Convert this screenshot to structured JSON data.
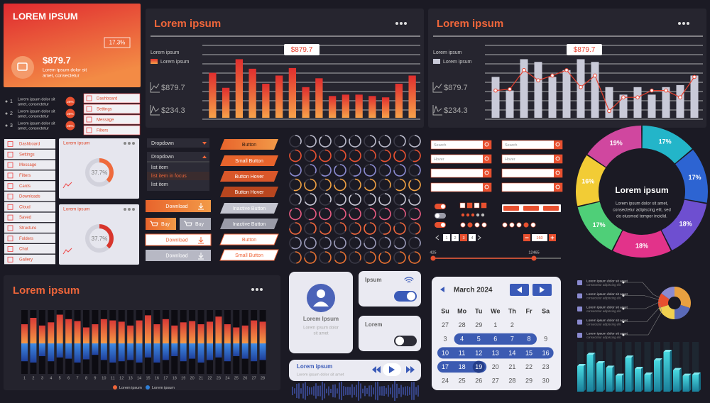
{
  "card": {
    "title": "LOREM IPSUM",
    "badge": "17.3%",
    "amount": "$879.7",
    "text": [
      "Lorem ipsum dolor sit",
      "amet, consectetur"
    ]
  },
  "bar_panel": {
    "title": "Lorem ipsum",
    "legend": [
      "Lorem ipsum",
      "Lorem ipsum"
    ],
    "stats": [
      "$879.7",
      "$234.3"
    ],
    "tooltip": "$879.7",
    "values": [
      66,
      44,
      86,
      72,
      50,
      62,
      73,
      45,
      58,
      32,
      34,
      34,
      32,
      30,
      50,
      62
    ],
    "ylim": [
      0,
      100
    ],
    "color": "#f0663a"
  },
  "combo_panel": {
    "title": "Lorem ipsum",
    "legend": [
      "Lorem ipsum",
      "Lorem ipsum"
    ],
    "stats": [
      "$879.7",
      "$234.3"
    ],
    "tooltip": "$879.7",
    "bars": [
      60,
      40,
      86,
      82,
      60,
      70,
      86,
      82,
      45,
      34,
      45,
      34,
      45,
      48,
      62
    ],
    "line": [
      40,
      42,
      70,
      55,
      62,
      70,
      45,
      62,
      10,
      30,
      30,
      40,
      40,
      30,
      60
    ],
    "ylim": [
      0,
      100
    ],
    "bar_color": "#c9cad8",
    "line_color": "#e8402f"
  },
  "steps": [
    {
      "number": "1",
      "text": [
        "Lorem ipsum dolor sit",
        "amet, consectetur"
      ],
      "badge": "28%"
    },
    {
      "number": "2",
      "text": [
        "Lorem ipsum dolor sit",
        "amet, consectetur"
      ],
      "badge": "28%"
    },
    {
      "number": "3",
      "text": [
        "Lorem ipsum dolor sit",
        "amet, consectetur"
      ],
      "badge": "28%"
    }
  ],
  "menu": [
    "Dashboard",
    "Settings",
    "Message",
    "Filters"
  ],
  "sidebar": [
    "Dashboard",
    "Settings",
    "Message",
    "Filters",
    "Cards",
    "Downloads",
    "Cloud",
    "Saved",
    "Structure",
    "Folders",
    "Chat",
    "Gallery"
  ],
  "gauges": [
    {
      "title": "Lorem ipsum",
      "value": 37.7,
      "value_label": "37.7%",
      "color": "#ef6a3c"
    },
    {
      "title": "Lorem ipsum",
      "value": 37.7,
      "value_label": "37.7%",
      "color": "#d8352c"
    }
  ],
  "dropdown": {
    "closed": "Dropdown",
    "open": "Dropdown",
    "items": [
      "list item",
      "list item in focus",
      "list item"
    ]
  },
  "actions": [
    "Download",
    "Buy",
    "Buy",
    "Download",
    "Download"
  ],
  "buttons": [
    "Button",
    "Small Button",
    "Button Hover",
    "Button Hover",
    "Inactive Button",
    "Inactive Button",
    "Button",
    "Small Button"
  ],
  "search": [
    "Search",
    "Search",
    "Hover",
    "Hover"
  ],
  "pages": [
    "1",
    "2",
    "3",
    "4"
  ],
  "stepper": "160",
  "slider": {
    "min": "425",
    "max": "12465"
  },
  "ring": {
    "title": "Lorem ipsum",
    "text": [
      "Lorem ipsum dolor sit amet,",
      "consectetur adipiscing elit, sed",
      "do eiusmod tempor incidid."
    ],
    "values": [
      17,
      17,
      18,
      18,
      17,
      16,
      19
    ],
    "value_labels": [
      "17%",
      "17%",
      "18%",
      "18%",
      "17%",
      "16%",
      "19%"
    ],
    "colors": [
      "#23b5c9",
      "#2d64d2",
      "#6e4fd0",
      "#e2338a",
      "#4fcf78",
      "#f2cc35",
      "#d0479f"
    ]
  },
  "profile": {
    "name": "Lorem Ipsum",
    "text": [
      "Lorem ipsum dolor",
      "sit amet"
    ]
  },
  "toggles": [
    {
      "label": "Ipsum",
      "on": true
    },
    {
      "label": "Lorem",
      "on": false
    }
  ],
  "player": {
    "title": "Lorem ipsum",
    "text": "Lorem ipsum dolor sit amet"
  },
  "calendar": {
    "month": "March 2024",
    "weekdays": [
      "Su",
      "Mo",
      "Tu",
      "We",
      "Th",
      "Fr",
      "Sa"
    ],
    "weeks": [
      [
        "27",
        "28",
        "29",
        "1",
        "2"
      ],
      [
        "3",
        "4",
        "5",
        "6",
        "7",
        "8",
        "9"
      ],
      [
        "10",
        "11",
        "12",
        "13",
        "14",
        "15",
        "16"
      ],
      [
        "17",
        "18",
        "19",
        "20",
        "21",
        "22",
        "23"
      ],
      [
        "24",
        "25",
        "26",
        "27",
        "28",
        "29",
        "30"
      ]
    ]
  },
  "stack_panel": {
    "title": "Lorem ipsum",
    "categories": [
      "1",
      "2",
      "3",
      "4",
      "5",
      "6",
      "7",
      "8",
      "9",
      "10",
      "11",
      "12",
      "13",
      "14",
      "15",
      "16",
      "17",
      "18",
      "19",
      "20",
      "21",
      "22",
      "23",
      "24",
      "25",
      "26",
      "27",
      "28"
    ],
    "ylim": [
      0,
      50
    ],
    "series": [
      {
        "name": "Lorem ipsum",
        "color": "#f0663a",
        "values": [
          30,
          40,
          28,
          33,
          45,
          38,
          35,
          25,
          30,
          38,
          36,
          34,
          28,
          36,
          44,
          30,
          38,
          28,
          33,
          35,
          30,
          34,
          42,
          30,
          25,
          28,
          36,
          34
        ]
      },
      {
        "name": "Lorem ipsum",
        "color": "#2f7fd6",
        "values": [
          28,
          30,
          20,
          28,
          22,
          24,
          30,
          25,
          18,
          26,
          30,
          28,
          26,
          30,
          22,
          30,
          26,
          20,
          28,
          24,
          30,
          26,
          22,
          28,
          20,
          24,
          28,
          26
        ]
      }
    ]
  },
  "info_list": {
    "items": [
      "Lorem ipsum dolor sit amet",
      "Lorem ipsum dolor sit amet",
      "Lorem ipsum dolor sit amet",
      "Lorem ipsum dolor sit amet",
      "Lorem ipsum dolor sit amet"
    ],
    "subs": [
      "consectetur adipiscing elit",
      "consectetur adipiscing elit",
      "consectetur adipiscing elit",
      "consectetur adipiscing elit",
      "consectetur adipiscing elit"
    ]
  },
  "mini_donut": {
    "values": [
      30,
      20,
      20,
      15,
      15
    ],
    "colors": [
      "#e8a040",
      "#5a6ab8",
      "#f0d050",
      "#e8502f",
      "#8a8ad0"
    ]
  },
  "bars3d": {
    "values": [
      45,
      65,
      50,
      42,
      28,
      60,
      40,
      30,
      55,
      70,
      38,
      28,
      30
    ],
    "ylim": [
      0,
      100
    ],
    "color": "#2ab8c8"
  }
}
